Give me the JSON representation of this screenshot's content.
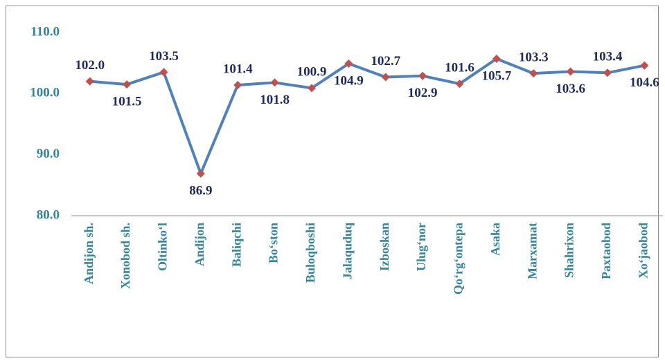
{
  "chart_data": {
    "type": "line",
    "categories": [
      "Andijon sh.",
      "Xonobod sh.",
      "Oltinko‘l",
      "Andijon",
      "Baliqchi",
      "Bo‘ston",
      "Buloqboshi",
      "Jalaquduq",
      "Izboskan",
      "Ulug‘nor",
      "Qo‘rg‘ontepa",
      "Asaka",
      "Marxamat",
      "Shahrixon",
      "Paxtaobod",
      "Xo‘jaobod"
    ],
    "values": [
      102.0,
      101.5,
      103.5,
      86.9,
      101.4,
      101.8,
      100.9,
      104.9,
      102.7,
      102.9,
      101.6,
      105.7,
      103.3,
      103.6,
      103.4,
      104.6
    ],
    "value_labels": [
      "102.0",
      "101.5",
      "103.5",
      "86.9",
      "101.4",
      "101.8",
      "100.9",
      "104.9",
      "102.7",
      "102.9",
      "101.6",
      "105.7",
      "103.3",
      "103.6",
      "103.4",
      "104.6"
    ],
    "color": "#4f81bd",
    "marker_color": "#c0504d",
    "ylim": [
      80,
      110
    ],
    "yticks": [
      {
        "value": 80,
        "label": "80.0"
      },
      {
        "value": 90,
        "label": "90.0"
      },
      {
        "value": 100,
        "label": "100.0"
      },
      {
        "value": 110,
        "label": "110.0"
      }
    ],
    "grid": false
  }
}
